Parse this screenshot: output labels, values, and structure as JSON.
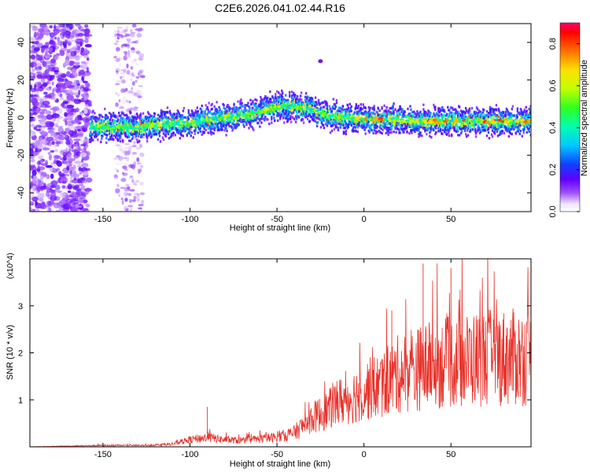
{
  "title": "C2E6.2026.041.02.44.R16",
  "chart_data": [
    {
      "type": "heatmap",
      "xlabel": "Height of straight line (km)",
      "ylabel": "Frequency (Hz)",
      "xlim": [
        -192,
        96
      ],
      "ylim": [
        -50,
        50
      ],
      "x_ticks": [
        -150,
        -100,
        -50,
        0,
        50
      ],
      "y_ticks": [
        -40,
        -20,
        0,
        20,
        40
      ],
      "colorbar": {
        "label": "Normalized spectral amplitude",
        "range": [
          0.0,
          0.9
        ],
        "ticks": [
          0.0,
          0.2,
          0.4,
          0.6,
          0.8
        ],
        "tick_labels": [
          "0.0",
          "0.2",
          "0.4",
          "0.6",
          "0.8"
        ]
      },
      "ridge": {
        "x": [
          -158,
          -150,
          -140,
          -130,
          -120,
          -110,
          -100,
          -95,
          -90,
          -80,
          -70,
          -60,
          -55,
          -50,
          -45,
          -40,
          -35,
          -30,
          -20,
          -10,
          0,
          10,
          20,
          30,
          40,
          50,
          60,
          70,
          80,
          96
        ],
        "freq": [
          -5,
          -5,
          -5,
          -5,
          -4,
          -3,
          -3,
          -2,
          -1,
          0,
          1,
          3,
          5,
          6,
          6,
          6,
          5,
          4,
          1,
          0,
          -1,
          -1,
          -1,
          -2,
          -2,
          -2,
          -2,
          -2,
          -2,
          -2
        ]
      },
      "blob": {
        "x": -25,
        "freq": 30
      }
    },
    {
      "type": "line",
      "xlabel": "Height of straight line (km)",
      "ylabel": "SNR (10 * v/v)",
      "y_multiplier": "(x10^4)",
      "xlim": [
        -192,
        96
      ],
      "ylim": [
        0,
        4
      ],
      "x_ticks": [
        -150,
        -100,
        -50,
        0,
        50
      ],
      "y_ticks": [
        1,
        2,
        3
      ],
      "trend": {
        "x": [
          -192,
          -150,
          -125,
          -110,
          -100,
          -90,
          -80,
          -70,
          -60,
          -50,
          -40,
          -35,
          -30,
          -25,
          -20,
          -15,
          -10,
          -5,
          0,
          10,
          20,
          30,
          40,
          50,
          60,
          70,
          80,
          90,
          96
        ],
        "snr": [
          0.0,
          0.03,
          0.03,
          0.06,
          0.15,
          0.2,
          0.15,
          0.13,
          0.17,
          0.2,
          0.3,
          0.45,
          0.6,
          0.7,
          0.8,
          0.95,
          1.0,
          1.1,
          1.2,
          1.3,
          1.55,
          1.65,
          1.75,
          1.8,
          1.85,
          1.9,
          1.9,
          1.9,
          1.9
        ]
      },
      "peaks": [
        {
          "x": 34,
          "snr": 3.9
        },
        {
          "x": 50,
          "snr": 3.8
        },
        {
          "x": 16,
          "snr": 2.9
        },
        {
          "x": -90,
          "snr": 0.85
        },
        {
          "x": -153,
          "snr": 0.07
        }
      ],
      "color": "#e8322a"
    }
  ]
}
